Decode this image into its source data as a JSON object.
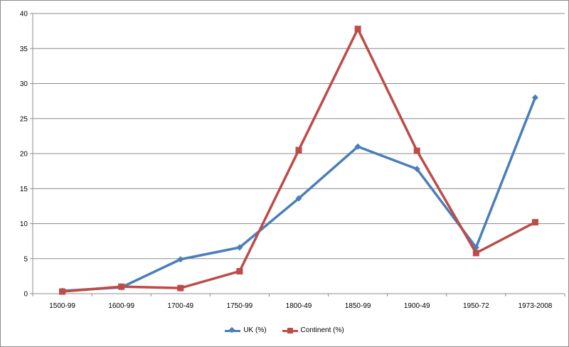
{
  "chart_data": {
    "type": "line",
    "categories": [
      "1500-99",
      "1600-99",
      "1700-49",
      "1750-99",
      "1800-49",
      "1850-99",
      "1900-49",
      "1950-72",
      "1973-2008"
    ],
    "ylim": [
      0,
      40
    ],
    "yticks": [
      "0",
      "5",
      "10",
      "15",
      "20",
      "25",
      "30",
      "35",
      "40"
    ],
    "grid": true,
    "legend_position": "bottom",
    "series": [
      {
        "name": "UK (%)",
        "color": "#4a7ebb",
        "marker": "diamond",
        "values": [
          0.4,
          0.9,
          4.9,
          6.6,
          13.6,
          21.0,
          17.8,
          6.6,
          28.0
        ]
      },
      {
        "name": "Continent (%)",
        "color": "#be4b48",
        "marker": "square",
        "values": [
          0.3,
          1.0,
          0.8,
          3.2,
          20.5,
          37.8,
          20.4,
          5.8,
          10.2
        ]
      }
    ]
  }
}
